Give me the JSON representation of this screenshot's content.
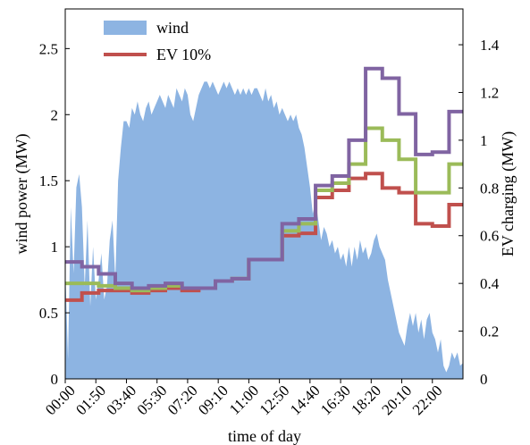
{
  "chart_data": {
    "type": "area",
    "title": "",
    "xlabel": "time of day",
    "ylabel_left": "wind power (MW)",
    "ylabel_right": "EV charging (MW)",
    "ylim_left": [
      0,
      2.8
    ],
    "ylim_right": [
      0,
      1.55
    ],
    "xlim": [
      0,
      143
    ],
    "yticks_left": [
      "0",
      "0.5",
      "1",
      "1.5",
      "2",
      "2.5"
    ],
    "yticks_right": [
      "0",
      "0.2",
      "0.4",
      "0.6",
      "0.8",
      "1",
      "1.2",
      "1.4"
    ],
    "xtick_labels": [
      "00:00",
      "01:50",
      "03:40",
      "05:30",
      "07:20",
      "09:10",
      "11:00",
      "12:50",
      "14:40",
      "16:30",
      "18:20",
      "20:10",
      "22:00"
    ],
    "xtick_index": [
      0,
      11,
      22,
      33,
      44,
      55,
      66,
      77,
      88,
      99,
      110,
      121,
      132
    ],
    "legend": {
      "placement": "top-left",
      "entries": [
        "wind",
        "EV 10%"
      ]
    },
    "grid": false,
    "series": [
      {
        "name": "wind",
        "kind": "area",
        "axis": "left",
        "color": "#8DB4E2",
        "points": [
          [
            0,
            0.85
          ],
          [
            1,
            0.15
          ],
          [
            2,
            1.3
          ],
          [
            3,
            0.8
          ],
          [
            4,
            1.45
          ],
          [
            5,
            1.55
          ],
          [
            6,
            1.3
          ],
          [
            7,
            0.7
          ],
          [
            8,
            1.2
          ],
          [
            9,
            0.55
          ],
          [
            10,
            1.0
          ],
          [
            11,
            0.6
          ],
          [
            12,
            0.75
          ],
          [
            13,
            0.95
          ],
          [
            14,
            0.6
          ],
          [
            15,
            0.7
          ],
          [
            16,
            1.05
          ],
          [
            17,
            1.2
          ],
          [
            18,
            0.75
          ],
          [
            19,
            1.5
          ],
          [
            20,
            1.75
          ],
          [
            21,
            1.95
          ],
          [
            22,
            1.95
          ],
          [
            23,
            1.9
          ],
          [
            24,
            2.05
          ],
          [
            25,
            2.0
          ],
          [
            26,
            2.1
          ],
          [
            27,
            2.0
          ],
          [
            28,
            1.95
          ],
          [
            29,
            2.05
          ],
          [
            30,
            2.1
          ],
          [
            31,
            2.0
          ],
          [
            32,
            2.05
          ],
          [
            33,
            2.1
          ],
          [
            34,
            2.15
          ],
          [
            35,
            2.1
          ],
          [
            36,
            2.05
          ],
          [
            37,
            2.15
          ],
          [
            38,
            2.1
          ],
          [
            39,
            2.05
          ],
          [
            40,
            2.2
          ],
          [
            41,
            2.15
          ],
          [
            42,
            2.1
          ],
          [
            43,
            2.2
          ],
          [
            44,
            2.15
          ],
          [
            45,
            2.0
          ],
          [
            46,
            1.95
          ],
          [
            47,
            2.05
          ],
          [
            48,
            2.15
          ],
          [
            49,
            2.2
          ],
          [
            50,
            2.25
          ],
          [
            51,
            2.25
          ],
          [
            52,
            2.2
          ],
          [
            53,
            2.25
          ],
          [
            54,
            2.2
          ],
          [
            55,
            2.15
          ],
          [
            56,
            2.2
          ],
          [
            57,
            2.25
          ],
          [
            58,
            2.2
          ],
          [
            59,
            2.25
          ],
          [
            60,
            2.2
          ],
          [
            61,
            2.15
          ],
          [
            62,
            2.2
          ],
          [
            63,
            2.15
          ],
          [
            64,
            2.2
          ],
          [
            65,
            2.15
          ],
          [
            66,
            2.2
          ],
          [
            67,
            2.15
          ],
          [
            68,
            2.2
          ],
          [
            69,
            2.2
          ],
          [
            70,
            2.15
          ],
          [
            71,
            2.1
          ],
          [
            72,
            2.2
          ],
          [
            73,
            2.1
          ],
          [
            74,
            2.15
          ],
          [
            75,
            2.05
          ],
          [
            76,
            2.1
          ],
          [
            77,
            2.0
          ],
          [
            78,
            2.05
          ],
          [
            79,
            2.0
          ],
          [
            80,
            1.95
          ],
          [
            81,
            2.0
          ],
          [
            82,
            1.95
          ],
          [
            83,
            2.0
          ],
          [
            84,
            1.9
          ],
          [
            85,
            1.85
          ],
          [
            86,
            1.75
          ],
          [
            87,
            1.6
          ],
          [
            88,
            1.45
          ],
          [
            89,
            1.25
          ],
          [
            90,
            1.35
          ],
          [
            91,
            1.2
          ],
          [
            92,
            1.05
          ],
          [
            93,
            1.15
          ],
          [
            94,
            1.1
          ],
          [
            95,
            1.0
          ],
          [
            96,
            1.05
          ],
          [
            97,
            0.95
          ],
          [
            98,
            1.0
          ],
          [
            99,
            0.9
          ],
          [
            100,
            0.95
          ],
          [
            101,
            0.85
          ],
          [
            102,
            1.0
          ],
          [
            103,
            0.85
          ],
          [
            104,
            1.0
          ],
          [
            105,
            0.9
          ],
          [
            106,
            1.05
          ],
          [
            107,
            0.95
          ],
          [
            108,
            1.0
          ],
          [
            109,
            0.9
          ],
          [
            110,
            0.95
          ],
          [
            111,
            1.05
          ],
          [
            112,
            1.1
          ],
          [
            113,
            1.0
          ],
          [
            114,
            0.95
          ],
          [
            115,
            0.9
          ],
          [
            116,
            0.75
          ],
          [
            117,
            0.65
          ],
          [
            118,
            0.55
          ],
          [
            119,
            0.45
          ],
          [
            120,
            0.35
          ],
          [
            121,
            0.3
          ],
          [
            122,
            0.25
          ],
          [
            123,
            0.4
          ],
          [
            124,
            0.5
          ],
          [
            125,
            0.4
          ],
          [
            126,
            0.5
          ],
          [
            127,
            0.35
          ],
          [
            128,
            0.45
          ],
          [
            129,
            0.3
          ],
          [
            130,
            0.45
          ],
          [
            131,
            0.5
          ],
          [
            132,
            0.35
          ],
          [
            133,
            0.3
          ],
          [
            134,
            0.2
          ],
          [
            135,
            0.3
          ],
          [
            136,
            0.1
          ],
          [
            137,
            0.05
          ],
          [
            138,
            0.1
          ],
          [
            139,
            0.2
          ],
          [
            140,
            0.15
          ],
          [
            141,
            0.2
          ],
          [
            142,
            0.1
          ],
          [
            143,
            0.12
          ]
        ]
      },
      {
        "name": "EV 10%",
        "kind": "step",
        "axis": "right",
        "color": "#C0504D",
        "points": [
          [
            0,
            0.33
          ],
          [
            6,
            0.36
          ],
          [
            12,
            0.37
          ],
          [
            18,
            0.37
          ],
          [
            24,
            0.36
          ],
          [
            30,
            0.37
          ],
          [
            36,
            0.38
          ],
          [
            42,
            0.37
          ],
          [
            48,
            0.38
          ],
          [
            54,
            0.41
          ],
          [
            60,
            0.42
          ],
          [
            66,
            0.5
          ],
          [
            78,
            0.6
          ],
          [
            84,
            0.61
          ],
          [
            90,
            0.76
          ],
          [
            96,
            0.79
          ],
          [
            102,
            0.84
          ],
          [
            108,
            0.86
          ],
          [
            114,
            0.8
          ],
          [
            120,
            0.78
          ],
          [
            126,
            0.65
          ],
          [
            132,
            0.64
          ],
          [
            138,
            0.73
          ],
          [
            143,
            0.73
          ]
        ]
      },
      {
        "name": "",
        "kind": "step",
        "axis": "right",
        "color": "#9BBB59",
        "points": [
          [
            0,
            0.4
          ],
          [
            6,
            0.4
          ],
          [
            12,
            0.39
          ],
          [
            18,
            0.38
          ],
          [
            24,
            0.37
          ],
          [
            30,
            0.38
          ],
          [
            36,
            0.39
          ],
          [
            42,
            0.38
          ],
          [
            48,
            0.38
          ],
          [
            54,
            0.41
          ],
          [
            60,
            0.42
          ],
          [
            66,
            0.5
          ],
          [
            78,
            0.62
          ],
          [
            84,
            0.65
          ],
          [
            90,
            0.79
          ],
          [
            96,
            0.82
          ],
          [
            102,
            0.9
          ],
          [
            108,
            1.05
          ],
          [
            114,
            1.0
          ],
          [
            120,
            0.92
          ],
          [
            126,
            0.78
          ],
          [
            132,
            0.78
          ],
          [
            138,
            0.9
          ],
          [
            143,
            0.9
          ]
        ]
      },
      {
        "name": "",
        "kind": "step",
        "axis": "right",
        "color": "#8064A2",
        "points": [
          [
            0,
            0.49
          ],
          [
            6,
            0.47
          ],
          [
            12,
            0.44
          ],
          [
            18,
            0.4
          ],
          [
            24,
            0.38
          ],
          [
            30,
            0.39
          ],
          [
            36,
            0.4
          ],
          [
            42,
            0.38
          ],
          [
            48,
            0.38
          ],
          [
            54,
            0.41
          ],
          [
            60,
            0.42
          ],
          [
            66,
            0.5
          ],
          [
            78,
            0.65
          ],
          [
            84,
            0.67
          ],
          [
            90,
            0.81
          ],
          [
            96,
            0.85
          ],
          [
            102,
            1.0
          ],
          [
            108,
            1.3
          ],
          [
            114,
            1.26
          ],
          [
            120,
            1.11
          ],
          [
            126,
            0.94
          ],
          [
            132,
            0.95
          ],
          [
            138,
            1.12
          ],
          [
            143,
            1.12
          ]
        ]
      }
    ]
  }
}
